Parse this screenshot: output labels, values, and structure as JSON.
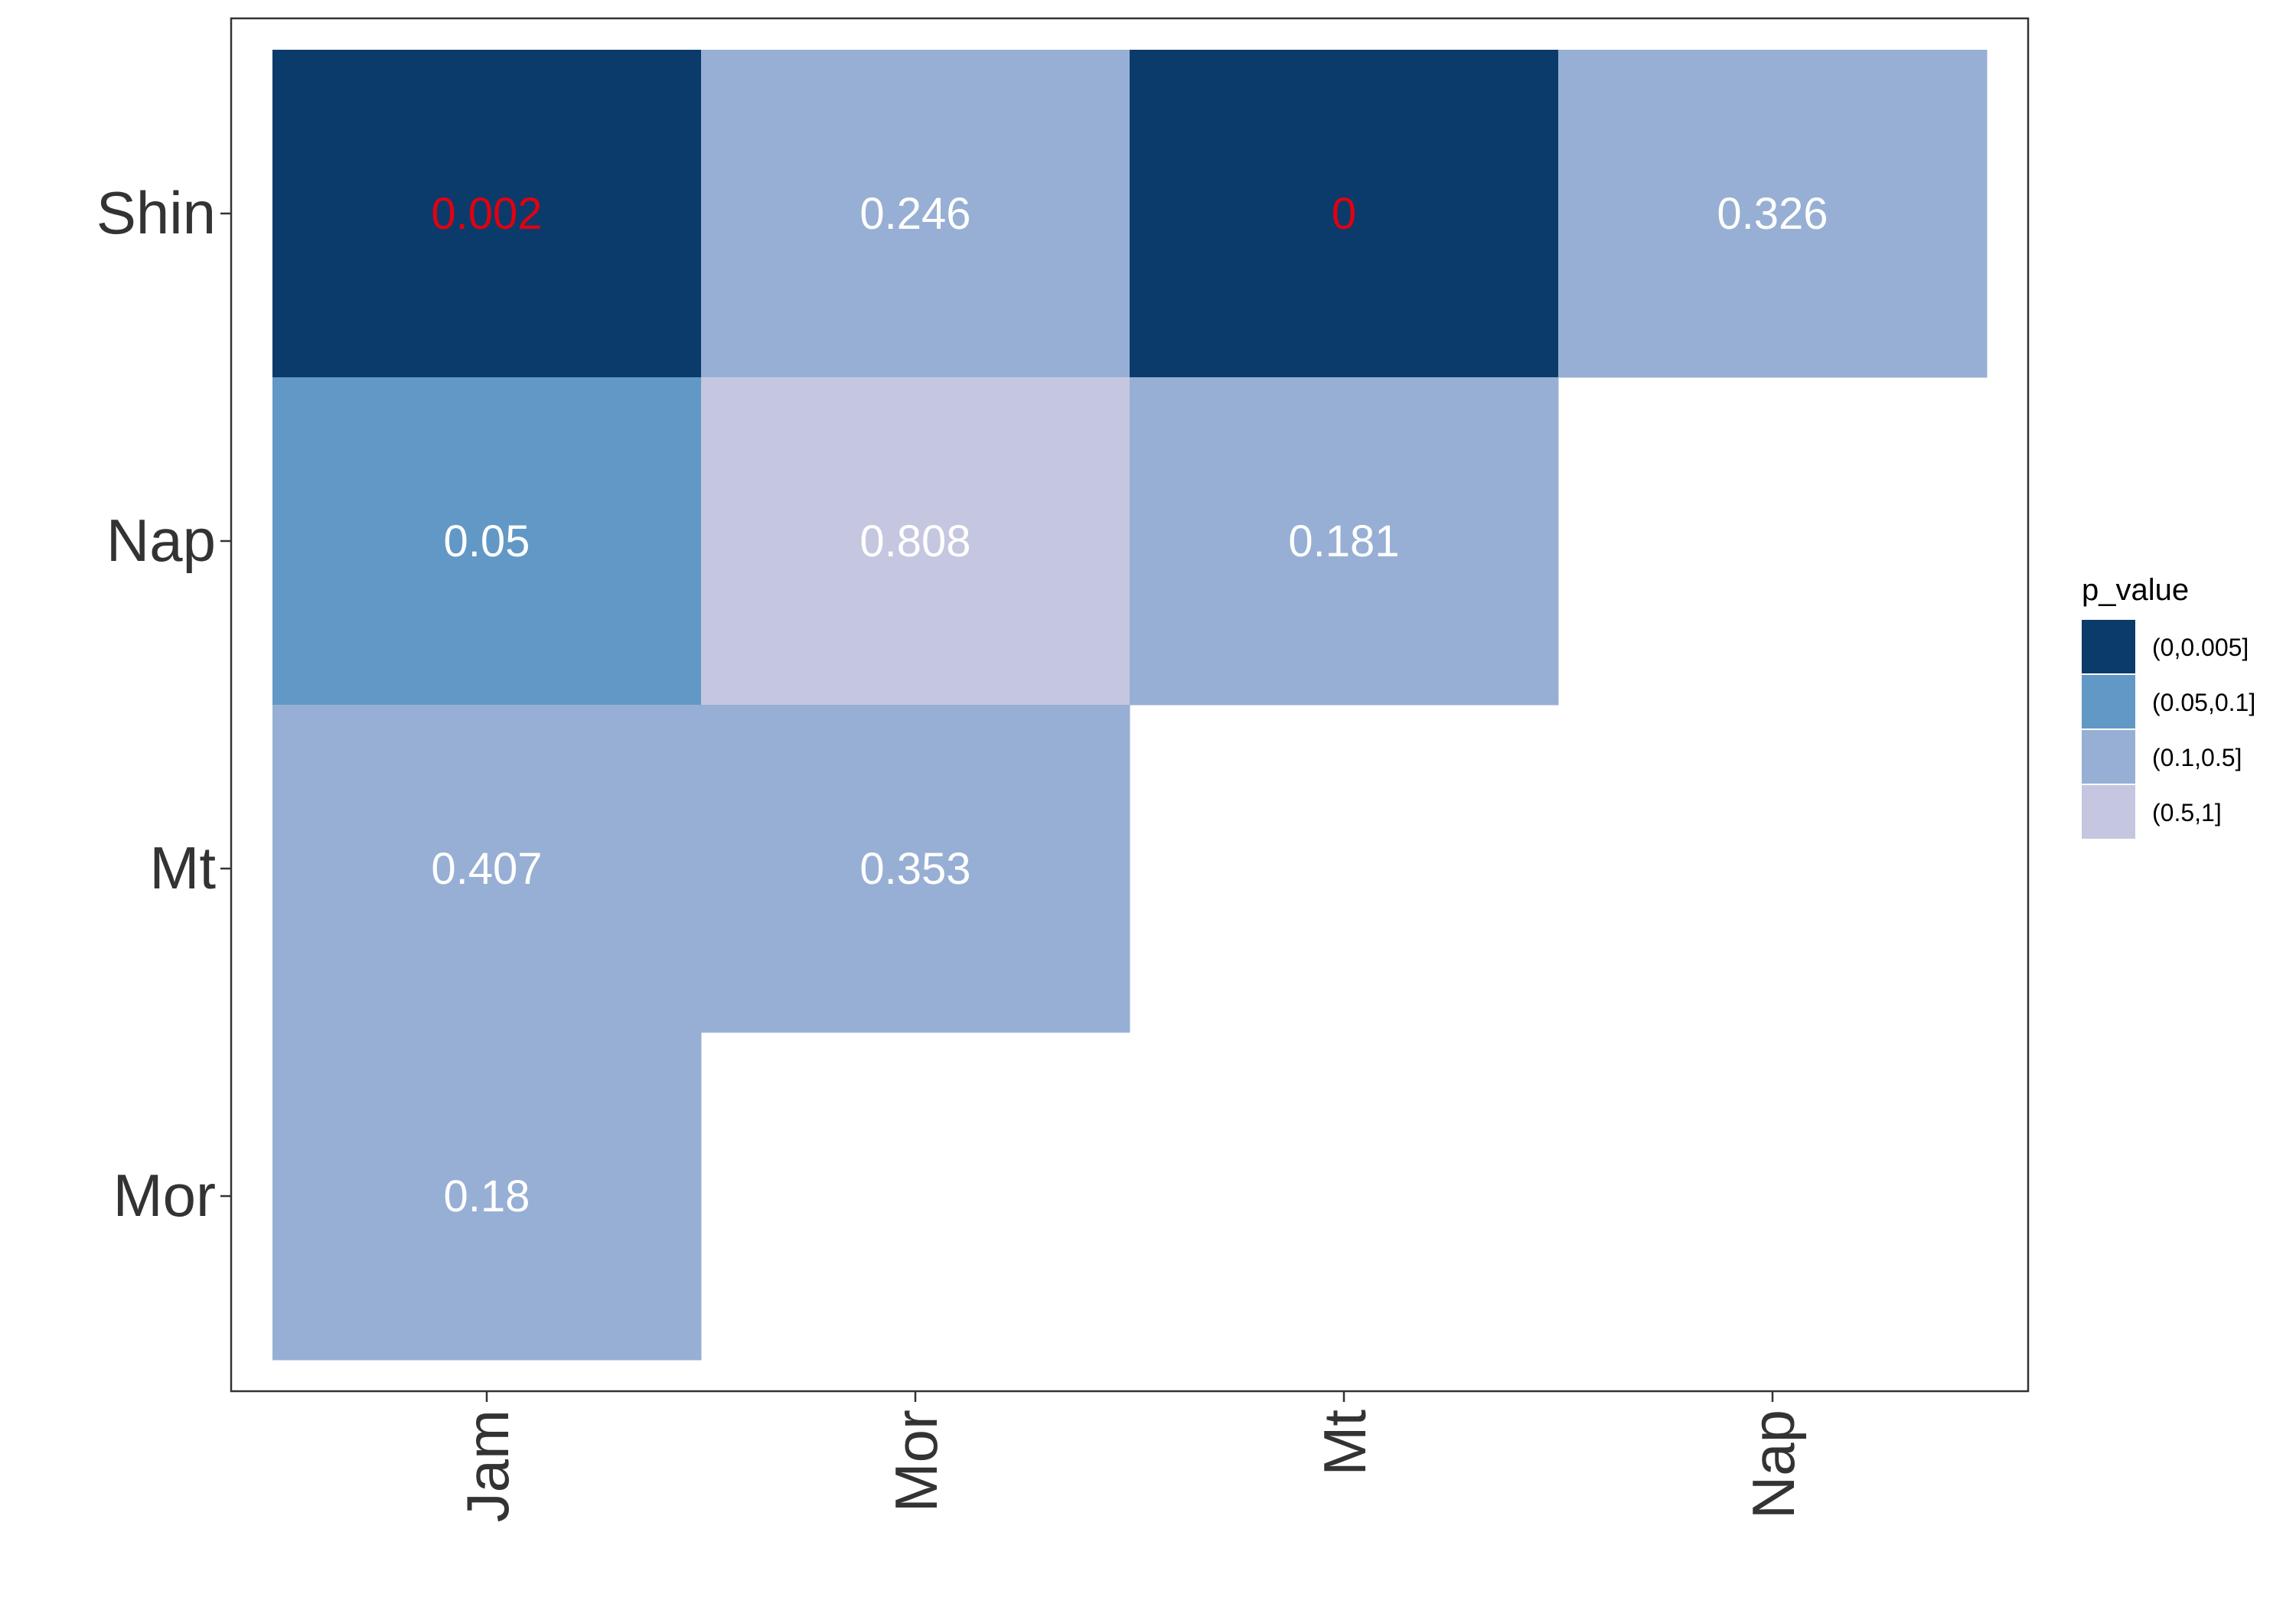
{
  "chart_data": {
    "type": "heatmap",
    "x_categories": [
      "Jam",
      "Mor",
      "Mt",
      "Nap"
    ],
    "y_categories": [
      "Shin",
      "Nap",
      "Mt",
      "Mor"
    ],
    "cells": [
      {
        "x": "Jam",
        "y": "Shin",
        "value": 0.002,
        "label": "0.002",
        "bin": 0
      },
      {
        "x": "Mor",
        "y": "Shin",
        "value": 0.246,
        "label": "0.246",
        "bin": 2
      },
      {
        "x": "Mt",
        "y": "Shin",
        "value": 0,
        "label": "0",
        "bin": 0
      },
      {
        "x": "Nap",
        "y": "Shin",
        "value": 0.326,
        "label": "0.326",
        "bin": 2
      },
      {
        "x": "Jam",
        "y": "Nap",
        "value": 0.05,
        "label": "0.05",
        "bin": 1
      },
      {
        "x": "Mor",
        "y": "Nap",
        "value": 0.808,
        "label": "0.808",
        "bin": 3
      },
      {
        "x": "Mt",
        "y": "Nap",
        "value": 0.181,
        "label": "0.181",
        "bin": 2
      },
      {
        "x": "Jam",
        "y": "Mt",
        "value": 0.407,
        "label": "0.407",
        "bin": 2
      },
      {
        "x": "Mor",
        "y": "Mt",
        "value": 0.353,
        "label": "0.353",
        "bin": 2
      },
      {
        "x": "Jam",
        "y": "Mor",
        "value": 0.18,
        "label": "0.18",
        "bin": 2
      }
    ],
    "legend": {
      "title": "p_value",
      "position": "right",
      "bins": [
        {
          "label": "(0,0.005]",
          "color": "#0b3b6b"
        },
        {
          "label": "(0.05,0.1]",
          "color": "#6298c5"
        },
        {
          "label": "(0.1,0.5]",
          "color": "#97afd4"
        },
        {
          "label": "(0.5,1]",
          "color": "#c5c6e0"
        }
      ]
    },
    "highlight_color": "#e3000f",
    "highlight_rule": "value < 0.005",
    "default_text_color": "#ffffff",
    "x_tick_rotation": -90,
    "grid": false,
    "panel_border": true
  }
}
